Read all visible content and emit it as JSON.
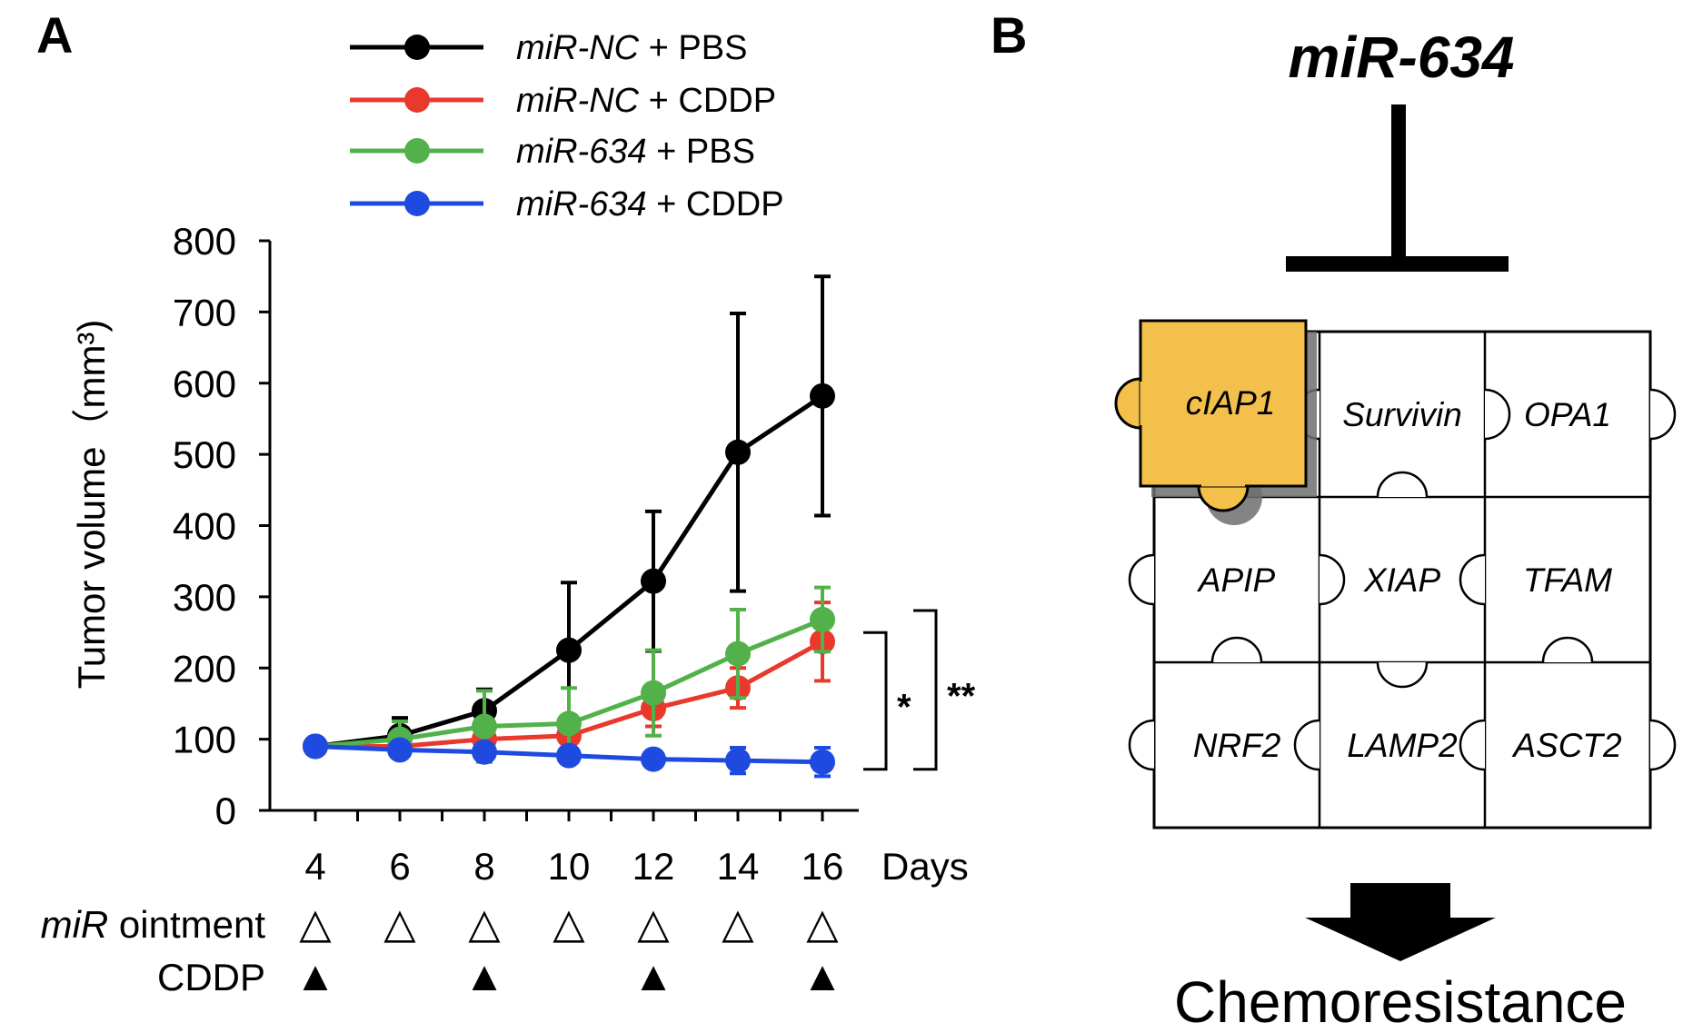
{
  "panels": [
    {
      "label": "A"
    },
    {
      "label": "B"
    }
  ],
  "chart_data": {
    "type": "line",
    "title": "",
    "xlabel": "Days",
    "ylabel": "Tumor volume（mm³)",
    "x": [
      4,
      6,
      8,
      10,
      12,
      14,
      16
    ],
    "x_ticks": [
      "4",
      "6",
      "8",
      "10",
      "12",
      "14",
      "16"
    ],
    "y_ticks": [
      "0",
      "100",
      "200",
      "300",
      "400",
      "500",
      "600",
      "700",
      "800"
    ],
    "ylim": [
      0,
      800
    ],
    "grid": false,
    "legend_position": "top",
    "series": [
      {
        "name_italic": "miR-NC",
        "name_rest": " + PBS",
        "color": "#000000",
        "values": [
          90,
          105,
          140,
          225,
          322,
          503,
          582
        ],
        "err": [
          10,
          25,
          30,
          95,
          98,
          195,
          168
        ]
      },
      {
        "name_italic": "miR-NC",
        "name_rest": " + CDDP",
        "color": "#e8392c",
        "values": [
          90,
          90,
          100,
          105,
          143,
          172,
          237
        ],
        "err": [
          10,
          12,
          20,
          15,
          25,
          28,
          55
        ]
      },
      {
        "name_italic": "miR-634",
        "name_rest": " + PBS",
        "color": "#52b14a",
        "values": [
          90,
          100,
          118,
          122,
          165,
          220,
          268
        ],
        "err": [
          10,
          25,
          50,
          50,
          60,
          62,
          45
        ]
      },
      {
        "name_italic": "miR-634",
        "name_rest": " + CDDP",
        "color": "#1f4ae0",
        "values": [
          90,
          85,
          82,
          77,
          72,
          70,
          68
        ],
        "err": [
          10,
          10,
          12,
          8,
          8,
          18,
          20
        ]
      }
    ],
    "significance": [
      {
        "text": "*",
        "from_series": 1,
        "to_series": 3
      },
      {
        "text": "**",
        "from_series": 2,
        "to_series": 3
      }
    ],
    "treatment_rows": [
      {
        "label_italic": "miR",
        "label_rest": " ointment",
        "symbol": "△",
        "days": [
          4,
          6,
          8,
          10,
          12,
          14,
          16
        ]
      },
      {
        "label_italic": "",
        "label_rest": "CDDP",
        "symbol": "▲",
        "days": [
          4,
          8,
          12,
          16
        ]
      }
    ]
  },
  "diagram": {
    "title": "miR-634",
    "highlight_color": "#f3c04c",
    "pieces": [
      {
        "label": "cIAP1",
        "highlight": true
      },
      {
        "label": "Survivin"
      },
      {
        "label": "OPA1"
      },
      {
        "label": "APIP"
      },
      {
        "label": "XIAP"
      },
      {
        "label": "TFAM"
      },
      {
        "label": "NRF2"
      },
      {
        "label": "LAMP2"
      },
      {
        "label": "ASCT2"
      }
    ],
    "outcome": "Chemoresistance"
  }
}
